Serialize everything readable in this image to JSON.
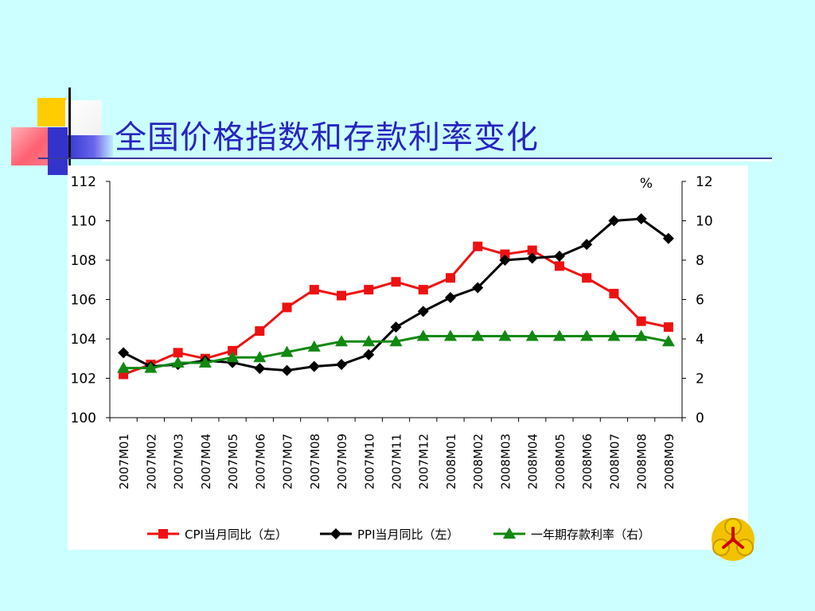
{
  "slide": {
    "title": "全国价格指数和存款利率变化"
  },
  "colors": {
    "background": "#ccffff",
    "title": "#2626bf",
    "cpi": "#ee1111",
    "ppi": "#000000",
    "rate": "#118811"
  },
  "logo": {
    "icon": "bank-emblem-icon"
  },
  "chart_data": {
    "type": "line",
    "categories": [
      "2007M01",
      "2007M02",
      "2007M03",
      "2007M04",
      "2007M05",
      "2007M06",
      "2007M07",
      "2007M08",
      "2007M09",
      "2007M10",
      "2007M11",
      "2007M12",
      "2008M01",
      "2008M02",
      "2008M03",
      "2008M04",
      "2008M05",
      "2008M06",
      "2008M07",
      "2008M08",
      "2008M09"
    ],
    "y_left": {
      "ylim": [
        100,
        112
      ],
      "ticks": [
        "100",
        "102",
        "104",
        "106",
        "108",
        "110",
        "112"
      ]
    },
    "y_right": {
      "unit_label": "%",
      "ylim": [
        0,
        12
      ],
      "ticks": [
        "0",
        "2",
        "4",
        "6",
        "8",
        "10",
        "12"
      ]
    },
    "series": [
      {
        "name": "CPI当月同比（左）",
        "axis": "left",
        "marker": "square",
        "values": [
          102.2,
          102.7,
          103.3,
          103.0,
          103.4,
          104.4,
          105.6,
          106.5,
          106.2,
          106.5,
          106.9,
          106.5,
          107.1,
          108.7,
          108.3,
          108.5,
          107.7,
          107.1,
          106.3,
          104.9,
          104.6
        ]
      },
      {
        "name": "PPI当月同比（左）",
        "axis": "left",
        "marker": "diamond",
        "values": [
          103.3,
          102.6,
          102.7,
          102.9,
          102.8,
          102.5,
          102.4,
          102.6,
          102.7,
          103.2,
          104.6,
          105.4,
          106.1,
          106.6,
          108.0,
          108.1,
          108.2,
          108.8,
          110.0,
          110.1,
          109.1
        ]
      },
      {
        "name": "一年期存款利率（右）",
        "axis": "right",
        "marker": "triangle",
        "values": [
          2.52,
          2.52,
          2.79,
          2.79,
          3.06,
          3.06,
          3.33,
          3.6,
          3.87,
          3.87,
          3.87,
          4.14,
          4.14,
          4.14,
          4.14,
          4.14,
          4.14,
          4.14,
          4.14,
          4.14,
          3.87
        ]
      }
    ]
  }
}
